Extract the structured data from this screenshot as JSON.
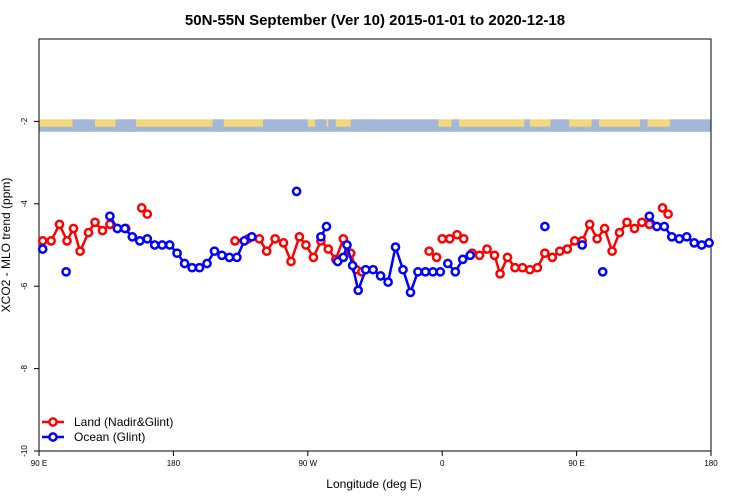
{
  "chart_data": {
    "type": "line",
    "title": "50N-55N September (Ver 10)   2015-01-01 to 2020-12-18",
    "xlabel": "Longitude (deg E)",
    "ylabel": "XCO2 - MLO trend (ppm)",
    "xlim": [
      0,
      360
    ],
    "ylim": [
      -10,
      0
    ],
    "x_ticks": [
      {
        "value": 0,
        "label": "90 E"
      },
      {
        "value": 72,
        "label": "180"
      },
      {
        "value": 144,
        "label": "90 W"
      },
      {
        "value": 216,
        "label": "0"
      },
      {
        "value": 288,
        "label": "90 E"
      },
      {
        "value": 360,
        "label": "180"
      }
    ],
    "y_ticks": [
      {
        "value": -2,
        "label": "-2"
      },
      {
        "value": -4,
        "label": "-4"
      },
      {
        "value": -6,
        "label": "-6"
      },
      {
        "value": -8,
        "label": "-8"
      },
      {
        "value": -10,
        "label": "-10"
      }
    ],
    "map_band": {
      "y_top": -1.95,
      "y_bottom": -2.25,
      "land_color": "#f5d67a",
      "ocean_color": "#a3b8d8"
    },
    "legend": {
      "position": "bottom-left",
      "entries": [
        "Land (Nadir&Glint)",
        "Ocean (Glint)"
      ]
    },
    "series": [
      {
        "name": "Land (Nadir&Glint)",
        "color": "#ff0000",
        "segments": [
          [
            [
              2,
              -4.9
            ],
            [
              6.5,
              -4.9
            ],
            [
              11,
              -4.5
            ],
            [
              15,
              -4.9
            ],
            [
              18.5,
              -4.6
            ],
            [
              22,
              -5.15
            ],
            [
              26.5,
              -4.7
            ],
            [
              30,
              -4.45
            ],
            [
              34,
              -4.65
            ],
            [
              38,
              -4.5
            ],
            [
              42,
              -4.6
            ],
            [
              46.5,
              -4.6
            ]
          ],
          [
            [
              55,
              -4.1
            ],
            [
              58,
              -4.25
            ]
          ],
          [
            [
              105,
              -4.9
            ],
            [
              112,
              -4.85
            ],
            [
              118,
              -4.85
            ],
            [
              122,
              -5.15
            ],
            [
              126.5,
              -4.85
            ],
            [
              131,
              -4.95
            ],
            [
              135,
              -5.4
            ],
            [
              139.5,
              -4.8
            ],
            [
              143,
              -5.0
            ],
            [
              147,
              -5.3
            ],
            [
              151,
              -4.9
            ],
            [
              155,
              -5.1
            ],
            [
              159,
              -5.35
            ],
            [
              163,
              -4.85
            ],
            [
              167,
              -5.2
            ],
            [
              170,
              -5.6
            ],
            [
              173,
              -5.65
            ]
          ],
          [
            [
              209,
              -5.15
            ],
            [
              213,
              -5.3
            ]
          ],
          [
            [
              216,
              -4.85
            ],
            [
              220,
              -4.85
            ],
            [
              224,
              -4.75
            ],
            [
              227.5,
              -4.85
            ]
          ],
          [
            [
              232,
              -5.2
            ],
            [
              236,
              -5.25
            ],
            [
              240,
              -5.1
            ],
            [
              244,
              -5.25
            ],
            [
              247,
              -5.7
            ],
            [
              251,
              -5.3
            ],
            [
              255,
              -5.55
            ],
            [
              259,
              -5.55
            ],
            [
              263,
              -5.6
            ],
            [
              267,
              -5.55
            ],
            [
              271,
              -5.2
            ],
            [
              275,
              -5.3
            ],
            [
              279,
              -5.15
            ],
            [
              283,
              -5.1
            ],
            [
              287,
              -4.9
            ],
            [
              291,
              -4.9
            ],
            [
              295,
              -4.5
            ],
            [
              299,
              -4.85
            ],
            [
              303,
              -4.6
            ],
            [
              307,
              -5.15
            ],
            [
              311,
              -4.7
            ],
            [
              315,
              -4.45
            ],
            [
              319,
              -4.6
            ],
            [
              323,
              -4.45
            ],
            [
              327,
              -4.5
            ]
          ],
          [
            [
              334,
              -4.1
            ],
            [
              337,
              -4.25
            ]
          ]
        ]
      },
      {
        "name": "Ocean (Glint)",
        "color": "#0000ff",
        "segments": [
          [
            [
              2,
              -5.1
            ]
          ],
          [
            [
              14.5,
              -5.65
            ]
          ],
          [
            [
              38,
              -4.3
            ],
            [
              42,
              -4.6
            ],
            [
              46,
              -4.6
            ],
            [
              50,
              -4.8
            ],
            [
              54,
              -4.9
            ],
            [
              58,
              -4.85
            ],
            [
              62,
              -5.0
            ],
            [
              66,
              -5.0
            ],
            [
              70,
              -5.0
            ],
            [
              74,
              -5.2
            ],
            [
              78,
              -5.45
            ],
            [
              82,
              -5.55
            ],
            [
              86,
              -5.55
            ],
            [
              90,
              -5.45
            ],
            [
              94,
              -5.15
            ],
            [
              98,
              -5.25
            ],
            [
              102,
              -5.3
            ],
            [
              106,
              -5.3
            ],
            [
              110,
              -4.9
            ],
            [
              114,
              -4.8
            ]
          ],
          [
            [
              138,
              -3.7
            ]
          ],
          [
            [
              151,
              -4.8
            ],
            [
              154,
              -4.55
            ]
          ],
          [
            [
              160,
              -5.4
            ],
            [
              163,
              -5.3
            ],
            [
              165,
              -5.0
            ],
            [
              168,
              -5.5
            ],
            [
              171,
              -6.1
            ],
            [
              175,
              -5.6
            ],
            [
              179,
              -5.6
            ],
            [
              183,
              -5.75
            ],
            [
              187,
              -5.9
            ],
            [
              191,
              -5.05
            ],
            [
              195,
              -5.6
            ],
            [
              199,
              -6.15
            ],
            [
              203,
              -5.65
            ],
            [
              207,
              -5.65
            ],
            [
              211,
              -5.65
            ],
            [
              215,
              -5.65
            ]
          ],
          [
            [
              219,
              -5.45
            ],
            [
              223,
              -5.65
            ],
            [
              227,
              -5.35
            ],
            [
              231,
              -5.25
            ]
          ],
          [
            [
              271,
              -4.55
            ]
          ],
          [
            [
              291,
              -5.0
            ]
          ],
          [
            [
              302,
              -5.65
            ]
          ],
          [
            [
              327,
              -4.3
            ],
            [
              331,
              -4.55
            ],
            [
              335,
              -4.55
            ],
            [
              339,
              -4.8
            ],
            [
              343,
              -4.85
            ],
            [
              347,
              -4.8
            ],
            [
              351,
              -4.95
            ],
            [
              355,
              -5.0
            ],
            [
              359,
              -4.95
            ]
          ]
        ]
      }
    ]
  }
}
